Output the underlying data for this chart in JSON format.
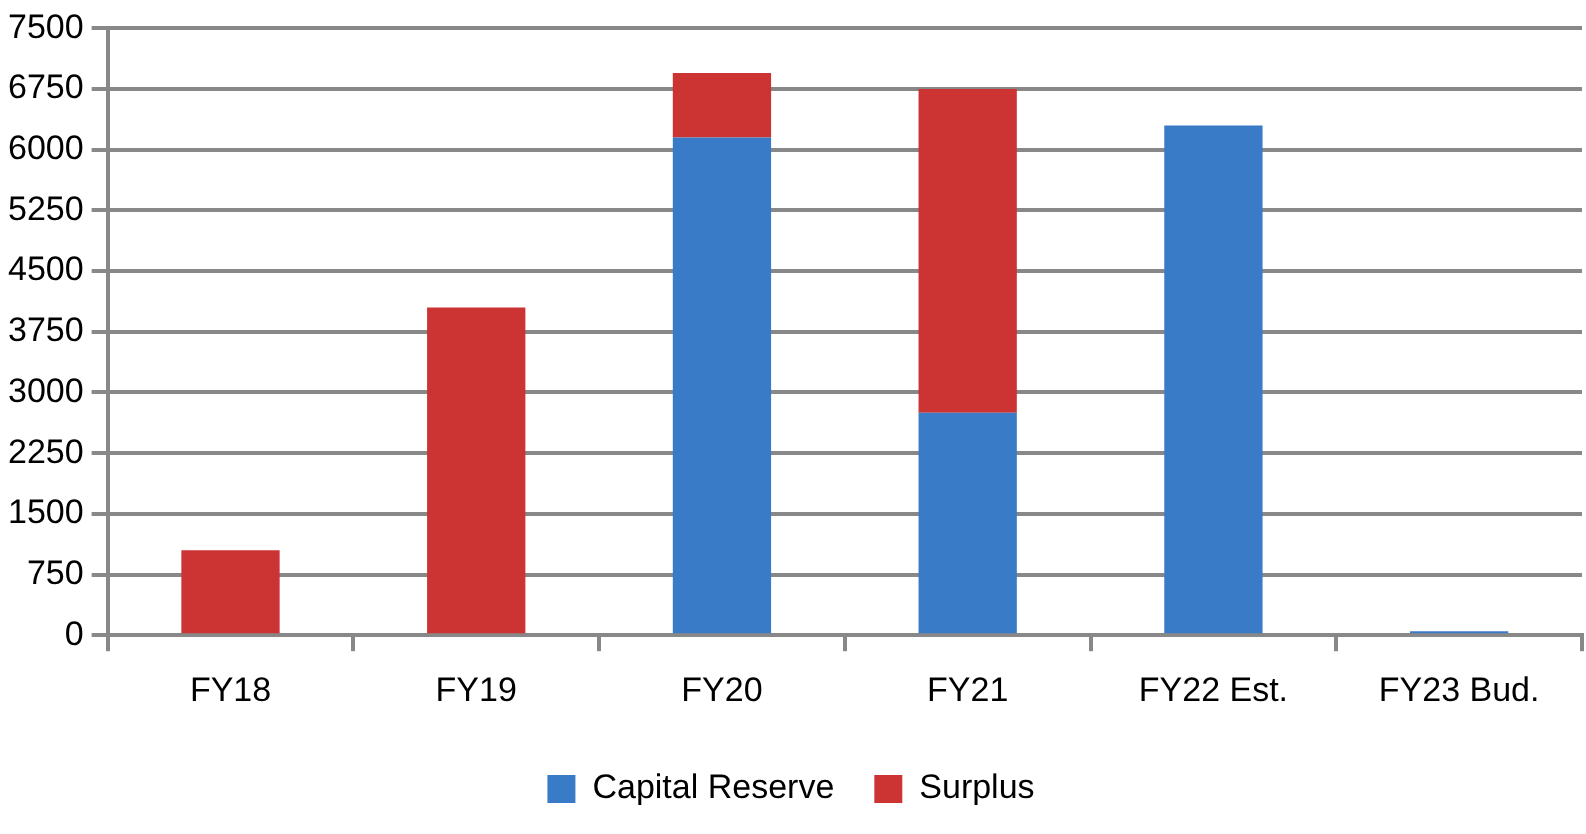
{
  "chart_data": {
    "type": "bar",
    "stacked": true,
    "categories": [
      "FY18",
      "FY19",
      "FY20",
      "FY21",
      "FY22 Est.",
      "FY23 Bud."
    ],
    "series": [
      {
        "name": "Capital Reserve",
        "color": "#3a7bc8",
        "values": [
          0,
          0,
          6150,
          2750,
          6300,
          50
        ]
      },
      {
        "name": "Surplus",
        "color": "#cc3333",
        "values": [
          1050,
          4050,
          800,
          4000,
          0,
          0
        ]
      }
    ],
    "ylim": [
      0,
      7500
    ],
    "yticks": [
      0,
      750,
      1500,
      2250,
      3000,
      3750,
      4500,
      5250,
      6000,
      6750,
      7500
    ],
    "grid": "y",
    "legend": "bottom"
  }
}
